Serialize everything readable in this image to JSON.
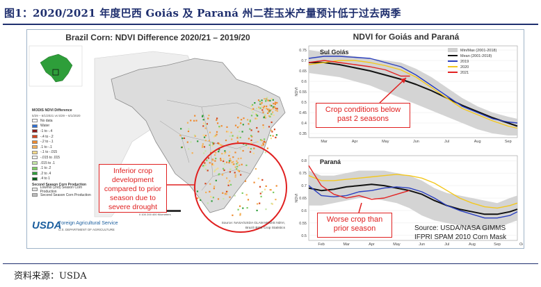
{
  "figure": {
    "title": "图1：2020/2021 年度巴西 Goiás 及 Paraná 州二茬玉米产量预计低于过去两季",
    "footer_source": "资料来源：USDA"
  },
  "map": {
    "title": "Brazil Corn: NDVI Difference 2020/21 – 2019/20",
    "legend_title": "MODIS NDVI Difference",
    "legend_subtitle": "5/29 – 6/1/2021 vs 5/29 – 6/1/2020",
    "legend_items": [
      {
        "label": "No data",
        "color": "#ffffff"
      },
      {
        "label": "Water",
        "color": "#2f6fd1"
      },
      {
        "label": "-1 to -.4",
        "color": "#8a1a1a"
      },
      {
        "label": "-.4 to -.2",
        "color": "#d4461e"
      },
      {
        "label": "-.2 to -.1",
        "color": "#ef8a2e"
      },
      {
        "label": ".1 to -.1",
        "color": "#f3b15a"
      },
      {
        "label": "-.1 to -.015",
        "color": "#f7d98a"
      },
      {
        "label": "-.015 to .015",
        "color": "#f2f2f2"
      },
      {
        "label": ".015 to .1",
        "color": "#c5e6a6"
      },
      {
        "label": ".1 to .2",
        "color": "#7ccb62"
      },
      {
        "label": ".2 to .4",
        "color": "#2e9e3a"
      },
      {
        "label": ".4 to 1",
        "color": "#0c5f1d"
      }
    ],
    "second_season_title": "Second Season Corn Production",
    "second_season_items": [
      {
        "label": "Low/No (2nd) Season Corn Production",
        "color": "#e5e5e5"
      },
      {
        "label": "Second Season Corn Production",
        "color": "#bdbdbd"
      }
    ],
    "scale_label": "0  100  200  400 Kilometers",
    "usda_mark": "USDA",
    "usda_agency": "Foreign Agricultural Service",
    "usda_department": "U.S. DEPARTMENT OF AGRICULTURE",
    "source_note_1": "Source: NASA/USDA GLAM MODIS NDVI,",
    "source_note_2": "Brazil IBGE Crop Statistics",
    "callout": "Inferior crop development compared to prior season due to severe drought",
    "callout_color": "#e02020"
  },
  "charts": {
    "title": "NDVI for Goiás and Paraná",
    "source_line1": "Source: USDA/NASA GIMMS",
    "source_line2": "IFPRI SPAM 2010 Corn Mask",
    "callout_goias": "Crop conditions below past 2 seasons",
    "callout_parana": "Worse crop than prior season"
  },
  "chart_data": [
    {
      "type": "line",
      "title": "Sul Goiás",
      "ylabel": "NDVI",
      "x_ticks": [
        "Mar",
        "Apr",
        "May",
        "Jun",
        "Jul",
        "Aug",
        "Sep"
      ],
      "x_range": [
        0,
        6.8
      ],
      "y_ticks": [
        0.35,
        0.4,
        0.45,
        0.5,
        0.55,
        0.6,
        0.65,
        0.7,
        0.75
      ],
      "ylim": [
        0.33,
        0.77
      ],
      "legend_position": "top-right",
      "x": [
        0,
        0.5,
        1,
        1.5,
        2,
        2.5,
        3,
        3.5,
        4,
        4.5,
        5,
        5.5,
        6,
        6.5,
        6.8
      ],
      "band": {
        "name": "Min/Max (2001-2018)",
        "color": "#cfcfcf",
        "low": [
          0.64,
          0.63,
          0.62,
          0.6,
          0.58,
          0.55,
          0.52,
          0.49,
          0.46,
          0.43,
          0.4,
          0.37,
          0.35,
          0.34,
          0.34
        ],
        "high": [
          0.75,
          0.74,
          0.73,
          0.72,
          0.71,
          0.7,
          0.69,
          0.66,
          0.62,
          0.57,
          0.52,
          0.48,
          0.45,
          0.43,
          0.42
        ]
      },
      "series": [
        {
          "name": "Mean (2001-2018)",
          "color": "#111111",
          "width": 2,
          "x": [
            0,
            0.5,
            1,
            1.5,
            2,
            2.5,
            3,
            3.5,
            4,
            4.5,
            5,
            5.5,
            6,
            6.5,
            6.8
          ],
          "values": [
            0.69,
            0.69,
            0.68,
            0.665,
            0.65,
            0.63,
            0.61,
            0.585,
            0.555,
            0.52,
            0.485,
            0.455,
            0.425,
            0.4,
            0.385
          ]
        },
        {
          "name": "2019",
          "color": "#2a3fbf",
          "width": 1.4,
          "x": [
            0,
            0.5,
            1,
            1.5,
            2,
            2.5,
            3,
            3.5,
            4,
            4.5,
            5,
            5.5,
            6,
            6.5,
            6.8
          ],
          "values": [
            0.71,
            0.72,
            0.72,
            0.715,
            0.71,
            0.69,
            0.67,
            0.63,
            0.58,
            0.53,
            0.48,
            0.45,
            0.42,
            0.405,
            0.4
          ]
        },
        {
          "name": "2020",
          "color": "#f3c71e",
          "width": 1.4,
          "x": [
            0,
            0.5,
            1,
            1.5,
            2,
            2.5,
            3,
            3.5,
            4,
            4.5,
            5,
            5.5,
            6,
            6.5,
            6.8
          ],
          "values": [
            0.68,
            0.69,
            0.7,
            0.7,
            0.69,
            0.675,
            0.655,
            0.62,
            0.57,
            0.52,
            0.47,
            0.44,
            0.41,
            0.385,
            0.375
          ]
        },
        {
          "name": "2021",
          "color": "#e32222",
          "width": 1.4,
          "x": [
            0,
            0.5,
            1,
            1.5,
            2,
            2.5,
            3,
            3.3
          ],
          "values": [
            0.69,
            0.7,
            0.69,
            0.68,
            0.67,
            0.655,
            0.625,
            0.625
          ]
        }
      ]
    },
    {
      "type": "line",
      "title": "Paraná",
      "ylabel": "NDVI",
      "x_ticks": [
        "Feb",
        "Mar",
        "Apr",
        "May",
        "Jun",
        "Jul",
        "Aug",
        "Sep",
        "Oct"
      ],
      "x_range": [
        0,
        8.3
      ],
      "y_ticks": [
        0.5,
        0.55,
        0.6,
        0.65,
        0.7,
        0.75,
        0.8
      ],
      "ylim": [
        0.48,
        0.82
      ],
      "x": [
        0,
        0.5,
        1,
        1.5,
        2,
        2.5,
        3,
        3.5,
        4,
        4.5,
        5,
        5.5,
        6,
        6.5,
        7,
        7.5,
        8,
        8.3
      ],
      "band": {
        "name": "Min/Max (2001-2018)",
        "color": "#cfcfcf",
        "low": [
          0.62,
          0.62,
          0.63,
          0.64,
          0.65,
          0.65,
          0.64,
          0.63,
          0.61,
          0.58,
          0.56,
          0.55,
          0.54,
          0.53,
          0.52,
          0.53,
          0.55,
          0.56
        ],
        "high": [
          0.76,
          0.74,
          0.74,
          0.75,
          0.76,
          0.76,
          0.76,
          0.75,
          0.74,
          0.72,
          0.69,
          0.67,
          0.66,
          0.65,
          0.64,
          0.63,
          0.65,
          0.66
        ]
      },
      "series": [
        {
          "name": "Mean (2001-2018)",
          "color": "#111111",
          "width": 2,
          "x": [
            0,
            0.5,
            1,
            1.5,
            2,
            2.5,
            3,
            3.5,
            4,
            4.5,
            5,
            5.5,
            6,
            6.5,
            7,
            7.5,
            8,
            8.3
          ],
          "values": [
            0.69,
            0.68,
            0.685,
            0.695,
            0.7,
            0.705,
            0.7,
            0.69,
            0.68,
            0.665,
            0.64,
            0.62,
            0.605,
            0.595,
            0.585,
            0.585,
            0.595,
            0.605
          ]
        },
        {
          "name": "2019",
          "color": "#2a3fbf",
          "width": 1.4,
          "x": [
            0,
            0.5,
            1,
            1.5,
            2,
            2.5,
            3,
            3.5,
            4,
            4.5,
            5,
            5.5,
            6,
            6.5,
            7,
            7.5,
            8,
            8.3
          ],
          "values": [
            0.7,
            0.66,
            0.655,
            0.66,
            0.675,
            0.68,
            0.69,
            0.695,
            0.69,
            0.675,
            0.65,
            0.62,
            0.6,
            0.585,
            0.57,
            0.57,
            0.58,
            0.595
          ]
        },
        {
          "name": "2020",
          "color": "#f3c71e",
          "width": 1.4,
          "x": [
            0,
            0.5,
            1,
            1.5,
            2,
            2.5,
            3,
            3.5,
            4,
            4.5,
            5,
            5.5,
            6,
            6.5,
            7,
            7.5,
            8,
            8.3
          ],
          "values": [
            0.74,
            0.72,
            0.72,
            0.725,
            0.73,
            0.735,
            0.74,
            0.745,
            0.74,
            0.73,
            0.71,
            0.68,
            0.65,
            0.63,
            0.615,
            0.61,
            0.62,
            0.63
          ]
        },
        {
          "name": "2021",
          "color": "#e32222",
          "width": 1.4,
          "x": [
            0,
            0.5,
            1,
            1.5,
            2,
            2.5,
            3,
            3.5,
            4
          ],
          "values": [
            0.78,
            0.7,
            0.665,
            0.65,
            0.66,
            0.645,
            0.65,
            0.665,
            0.68
          ]
        }
      ]
    }
  ]
}
